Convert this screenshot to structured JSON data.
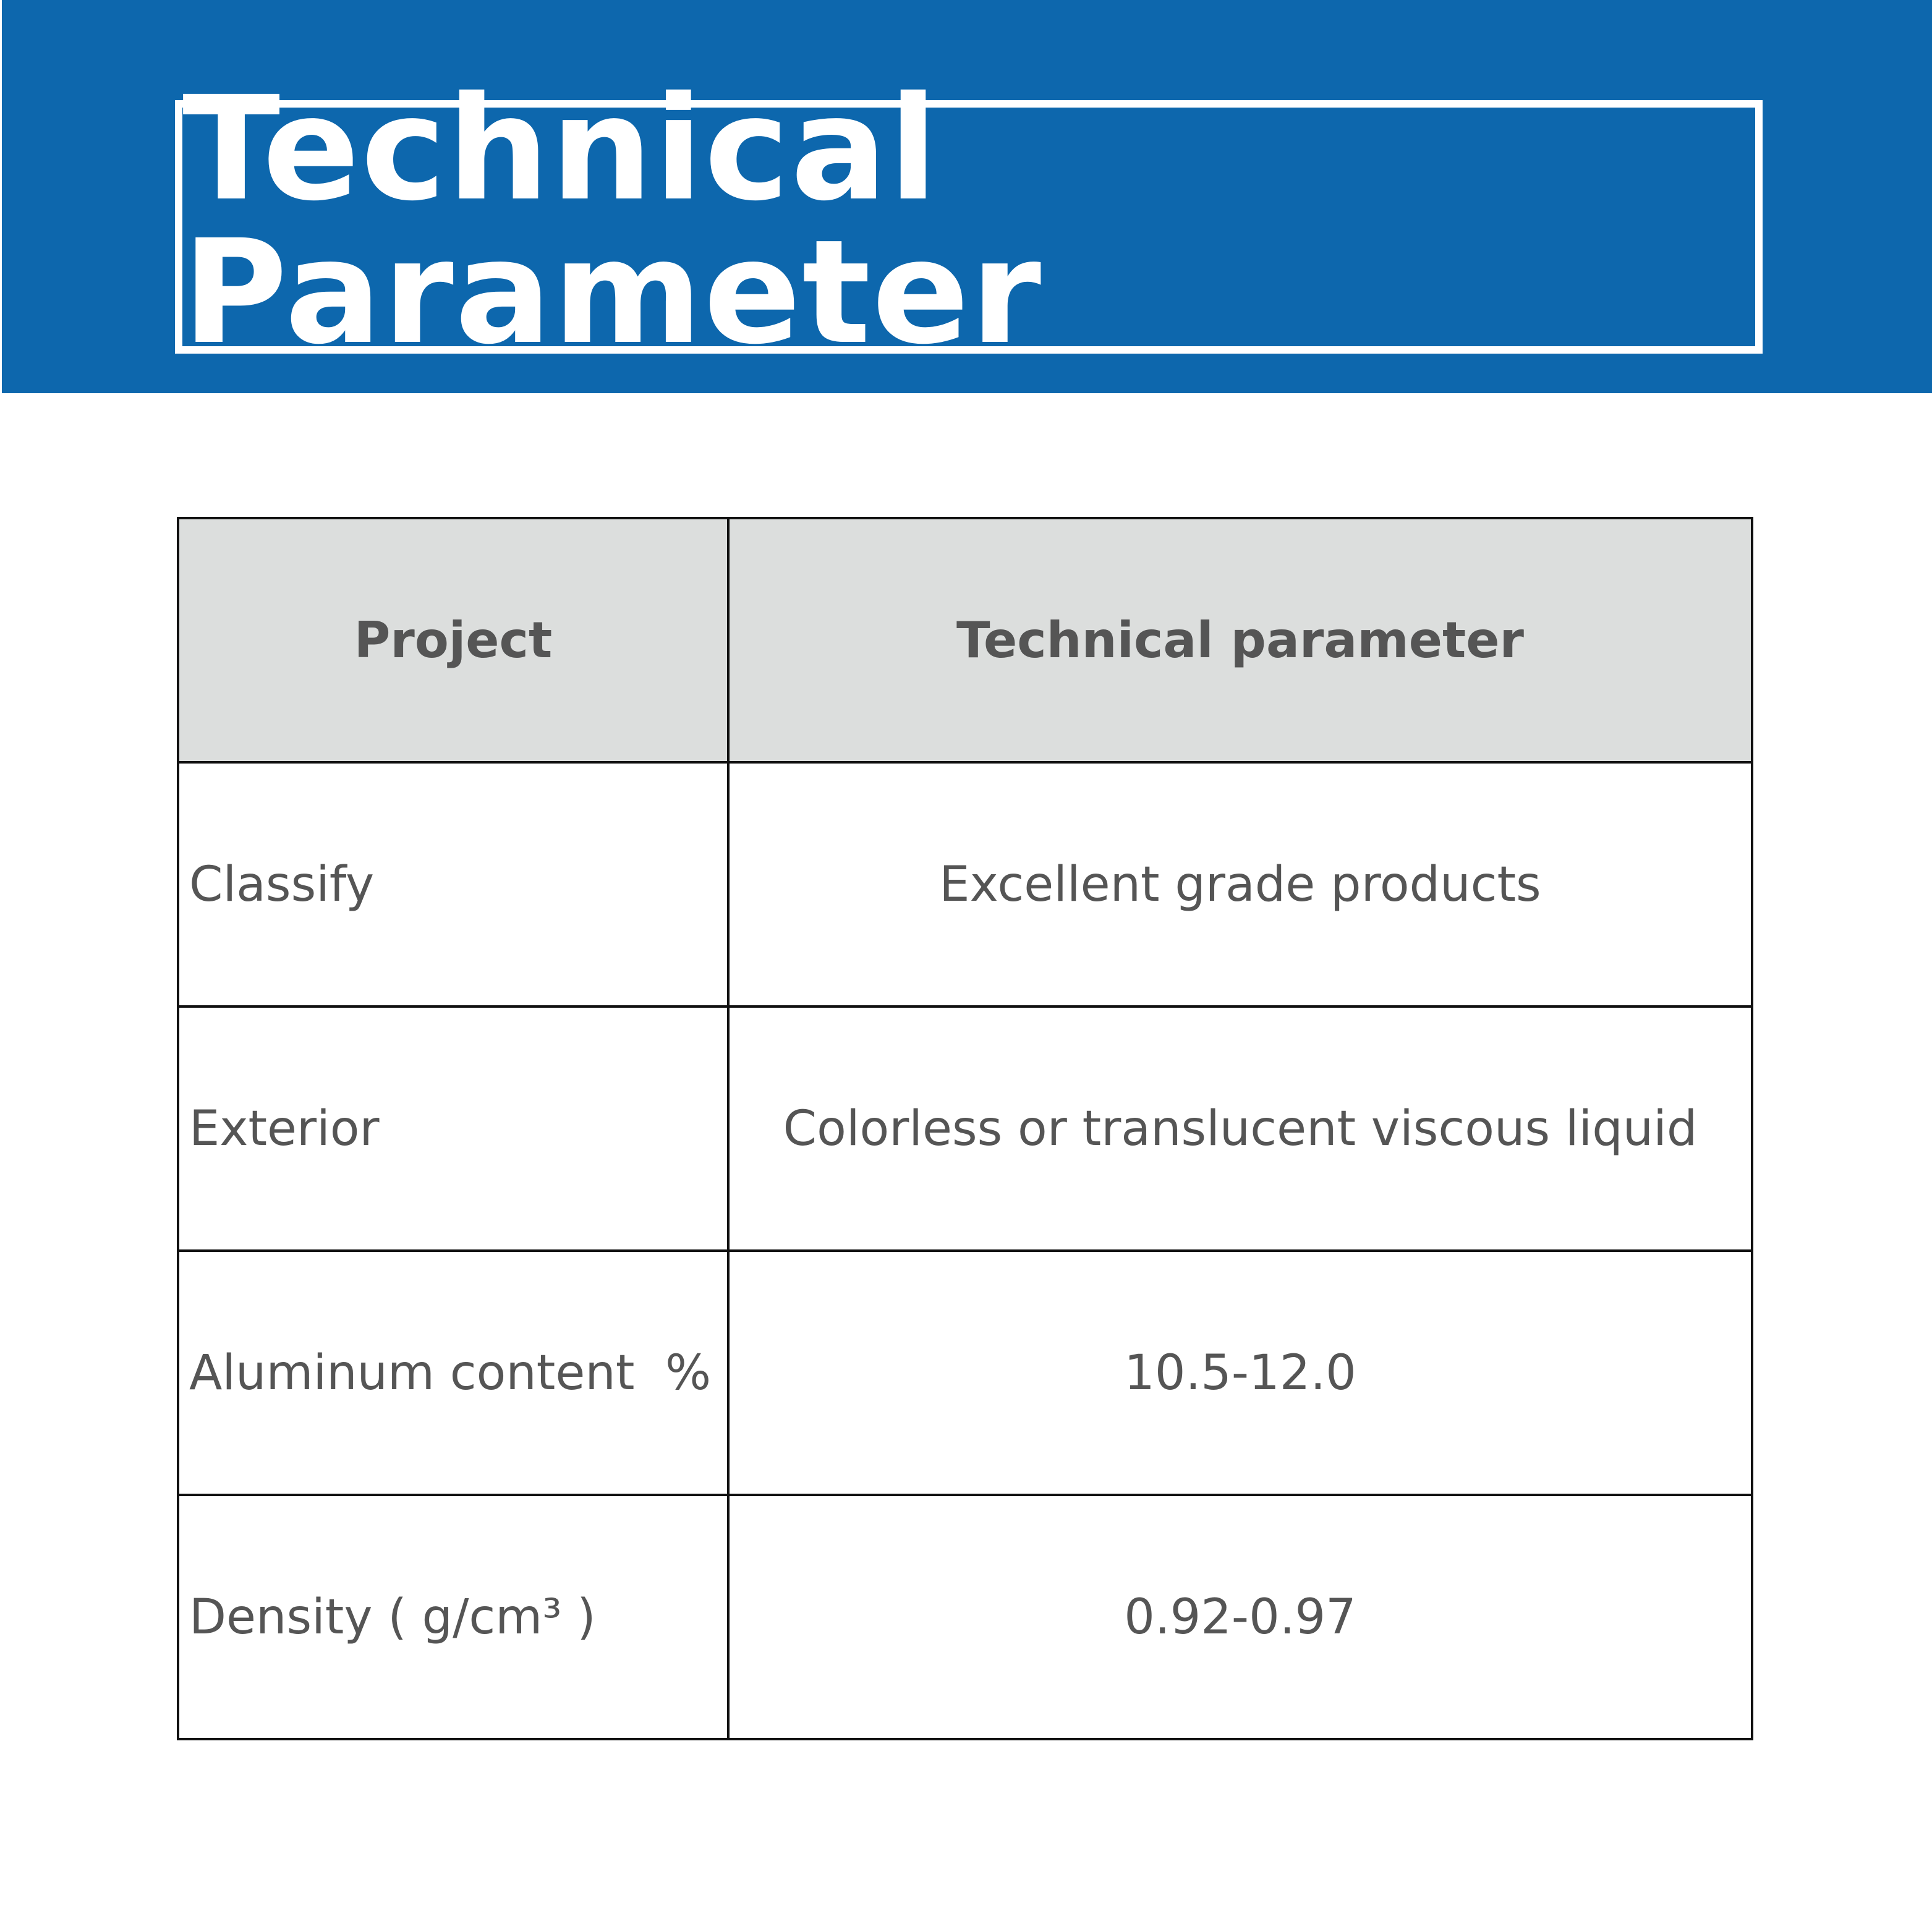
{
  "header": {
    "title": "Technical Parameter"
  },
  "colors": {
    "banner": "#0d67ad",
    "table_header_bg": "#dcdedd",
    "text": "#555555"
  },
  "table": {
    "columns": [
      "Project",
      "Technical parameter"
    ],
    "rows": [
      {
        "project": "Classify",
        "value": "Excellent grade products"
      },
      {
        "project": "Exterior",
        "value": "Colorless or translucent viscous liquid"
      },
      {
        "project": "Aluminum content  %",
        "value": "10.5-12.0"
      },
      {
        "project": "Density ( g/cm³ )",
        "value": "0.92-0.97"
      }
    ]
  }
}
